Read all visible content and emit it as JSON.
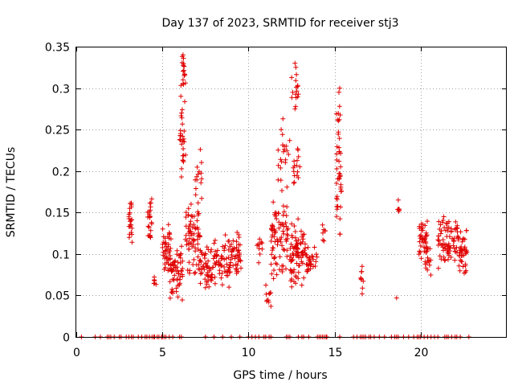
{
  "chart_data": {
    "type": "scatter",
    "title": "Day 137 of 2023, SRMTID for receiver stj3",
    "xlabel": "GPS time / hours",
    "ylabel": "SRMTID / TECUs",
    "xlim": [
      0,
      25
    ],
    "ylim": [
      0,
      0.35
    ],
    "grid": true,
    "marker": "plus",
    "color": "#e00000",
    "xticks": [
      0,
      5,
      10,
      15,
      20
    ],
    "xtick_labels": [
      "0",
      "5",
      "10",
      "15",
      "20"
    ],
    "yticks": [
      0,
      0.05,
      0.1,
      0.15,
      0.2,
      0.25,
      0.3,
      0.35
    ],
    "ytick_labels": [
      "0",
      "0.05",
      "0.1",
      "0.15",
      "0.2",
      "0.25",
      "0.3",
      "0.35"
    ],
    "clusters": [
      {
        "x": [
          3.05,
          3.25
        ],
        "y_mid": 0.14,
        "y_spread": 0.032,
        "n": 22
      },
      {
        "x": [
          4.15,
          4.4
        ],
        "y_mid": 0.135,
        "y_spread": 0.038,
        "n": 24
      },
      {
        "x": [
          4.5,
          4.7
        ],
        "y_mid": 0.066,
        "y_spread": 0.008,
        "n": 6
      },
      {
        "x": [
          5.0,
          5.5
        ],
        "y_mid": 0.105,
        "y_spread": 0.035,
        "n": 40
      },
      {
        "x": [
          5.4,
          6.2
        ],
        "y_mid": 0.08,
        "y_spread": 0.04,
        "n": 60
      },
      {
        "x": [
          6.0,
          6.35
        ],
        "y_mid": 0.25,
        "y_spread": 0.09,
        "n": 30
      },
      {
        "x": [
          6.1,
          6.3
        ],
        "y_mid": 0.325,
        "y_spread": 0.015,
        "n": 10
      },
      {
        "x": [
          6.3,
          7.2
        ],
        "y_mid": 0.115,
        "y_spread": 0.05,
        "n": 70
      },
      {
        "x": [
          6.9,
          7.3
        ],
        "y_mid": 0.19,
        "y_spread": 0.035,
        "n": 14
      },
      {
        "x": [
          7.2,
          8.0
        ],
        "y_mid": 0.085,
        "y_spread": 0.03,
        "n": 50
      },
      {
        "x": [
          8.0,
          9.0
        ],
        "y_mid": 0.09,
        "y_spread": 0.035,
        "n": 60
      },
      {
        "x": [
          9.0,
          9.6
        ],
        "y_mid": 0.105,
        "y_spread": 0.03,
        "n": 40
      },
      {
        "x": [
          10.5,
          10.8
        ],
        "y_mid": 0.105,
        "y_spread": 0.02,
        "n": 10
      },
      {
        "x": [
          11.0,
          11.3
        ],
        "y_mid": 0.05,
        "y_spread": 0.015,
        "n": 10
      },
      {
        "x": [
          11.3,
          12.3
        ],
        "y_mid": 0.115,
        "y_spread": 0.05,
        "n": 80
      },
      {
        "x": [
          11.7,
          12.4
        ],
        "y_mid": 0.215,
        "y_spread": 0.05,
        "n": 20
      },
      {
        "x": [
          12.4,
          13.3
        ],
        "y_mid": 0.1,
        "y_spread": 0.045,
        "n": 80
      },
      {
        "x": [
          12.5,
          12.9
        ],
        "y_mid": 0.3,
        "y_spread": 0.03,
        "n": 14
      },
      {
        "x": [
          12.6,
          13.0
        ],
        "y_mid": 0.2,
        "y_spread": 0.04,
        "n": 16
      },
      {
        "x": [
          13.3,
          14.0
        ],
        "y_mid": 0.09,
        "y_spread": 0.025,
        "n": 30
      },
      {
        "x": [
          14.3,
          14.5
        ],
        "y_mid": 0.125,
        "y_spread": 0.015,
        "n": 6
      },
      {
        "x": [
          15.1,
          15.4
        ],
        "y_mid": 0.2,
        "y_spread": 0.1,
        "n": 45
      },
      {
        "x": [
          16.5,
          16.7
        ],
        "y_mid": 0.068,
        "y_spread": 0.018,
        "n": 6
      },
      {
        "x": [
          18.6,
          18.8
        ],
        "y_mid": 0.15,
        "y_spread": 0.012,
        "n": 5
      },
      {
        "x": [
          19.9,
          20.4
        ],
        "y_mid": 0.12,
        "y_spread": 0.03,
        "n": 40
      },
      {
        "x": [
          20.2,
          20.6
        ],
        "y_mid": 0.09,
        "y_spread": 0.02,
        "n": 16
      },
      {
        "x": [
          21.0,
          21.6
        ],
        "y_mid": 0.115,
        "y_spread": 0.04,
        "n": 40
      },
      {
        "x": [
          21.6,
          22.2
        ],
        "y_mid": 0.115,
        "y_spread": 0.03,
        "n": 40
      },
      {
        "x": [
          22.2,
          22.7
        ],
        "y_mid": 0.1,
        "y_spread": 0.035,
        "n": 40
      }
    ],
    "points": [
      [
        18.6,
        0.047
      ],
      [
        18.7,
        0.165
      ],
      [
        16.6,
        0.052
      ],
      [
        16.6,
        0.085
      ],
      [
        6.2,
        0.34
      ],
      [
        6.15,
        0.338
      ],
      [
        6.2,
        0.31
      ],
      [
        12.7,
        0.33
      ],
      [
        12.75,
        0.325
      ],
      [
        15.3,
        0.3
      ],
      [
        15.25,
        0.295
      ],
      [
        12.7,
        0.275
      ],
      [
        6.15,
        0.274
      ],
      [
        6.2,
        0.236
      ],
      [
        7.2,
        0.226
      ],
      [
        12.0,
        0.263
      ],
      [
        11.9,
        0.25
      ],
      [
        14.3,
        0.135
      ],
      [
        16.55,
        0.07
      ]
    ],
    "baseline_y": 0,
    "baseline_x": [
      0.3,
      1.1,
      1.4,
      1.8,
      1.9,
      2.0,
      2.2,
      2.5,
      2.6,
      2.9,
      3.05,
      3.2,
      3.3,
      3.6,
      3.8,
      4.0,
      4.1,
      4.25,
      4.4,
      4.5,
      4.55,
      4.7,
      4.8,
      4.95,
      5.0,
      5.1,
      5.2,
      5.4,
      5.6,
      6.0,
      6.1,
      7.5,
      8.0,
      8.5,
      9.0,
      9.5,
      10.0,
      10.2,
      10.4,
      10.6,
      10.9,
      11.0,
      11.2,
      11.3,
      12.2,
      12.3,
      12.4,
      12.9,
      13.1,
      13.2,
      13.5,
      14.0,
      14.1,
      14.2,
      14.3,
      14.4,
      14.5,
      14.55,
      15.3,
      16.1,
      16.3,
      16.5,
      16.6,
      16.7,
      16.8,
      17.0,
      17.1,
      17.3,
      17.6,
      17.9,
      18.3,
      18.5,
      18.6,
      18.7,
      19.0,
      19.3,
      19.6,
      19.8,
      19.9,
      20.0,
      20.2,
      20.4,
      20.6,
      20.8,
      21.0,
      21.4,
      21.5,
      21.6,
      21.8,
      22.0,
      22.1,
      22.3,
      22.8
    ]
  }
}
